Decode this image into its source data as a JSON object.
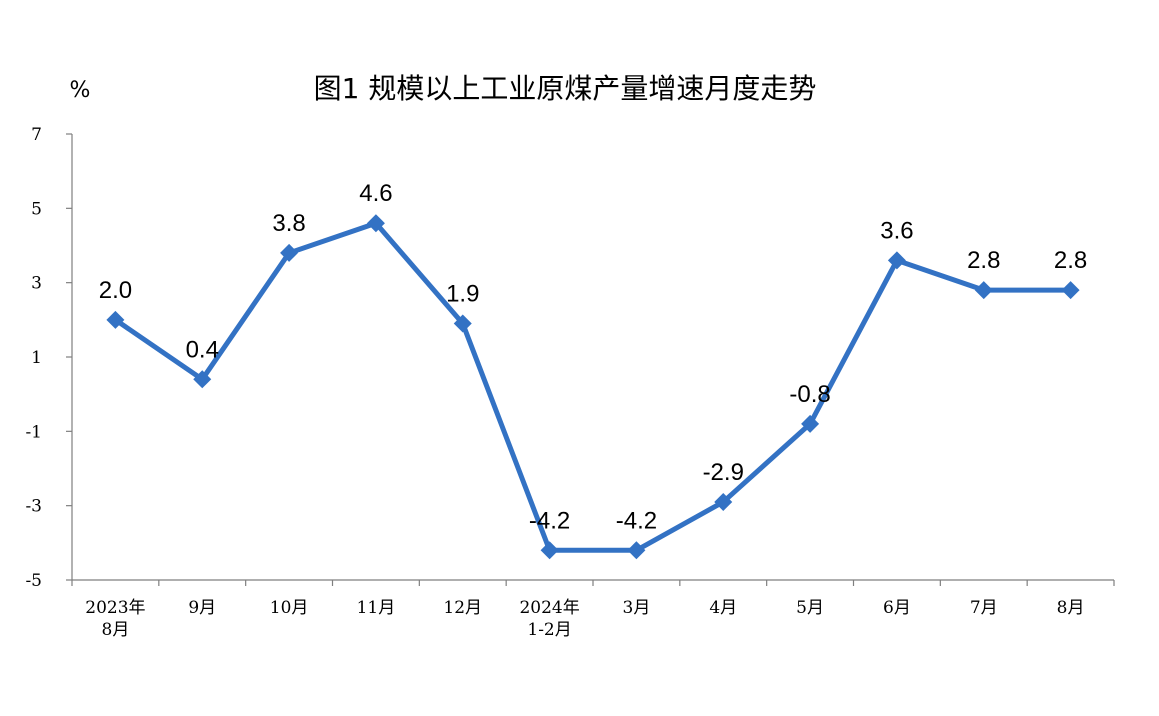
{
  "chart_data": {
    "type": "line",
    "title": "图1  规模以上工业原煤产量增速月度走势",
    "ylabel": "%",
    "ylim": [
      -5,
      7
    ],
    "yticks": [
      "7",
      "5",
      "3",
      "1",
      "-1",
      "-3",
      "-5"
    ],
    "ytick_values": [
      7,
      5,
      3,
      1,
      -1,
      -3,
      -5
    ],
    "categories": [
      [
        "2023年",
        "8月"
      ],
      [
        "9月"
      ],
      [
        "10月"
      ],
      [
        "11月"
      ],
      [
        "12月"
      ],
      [
        "2024年",
        "1-2月"
      ],
      [
        "3月"
      ],
      [
        "4月"
      ],
      [
        "5月"
      ],
      [
        "6月"
      ],
      [
        "7月"
      ],
      [
        "8月"
      ]
    ],
    "series": [
      {
        "values": [
          2.0,
          0.4,
          3.8,
          4.6,
          1.9,
          -4.2,
          -4.2,
          -2.9,
          -0.8,
          3.6,
          2.8,
          2.8
        ],
        "labels": [
          "2.0",
          "0.4",
          "3.8",
          "4.6",
          "1.9",
          "-4.2",
          "-4.2",
          "-2.9",
          "-0.8",
          "3.6",
          "2.8",
          "2.8"
        ]
      }
    ],
    "marker": "diamond",
    "color": "#3372C4",
    "grid": false,
    "legend": "none"
  }
}
